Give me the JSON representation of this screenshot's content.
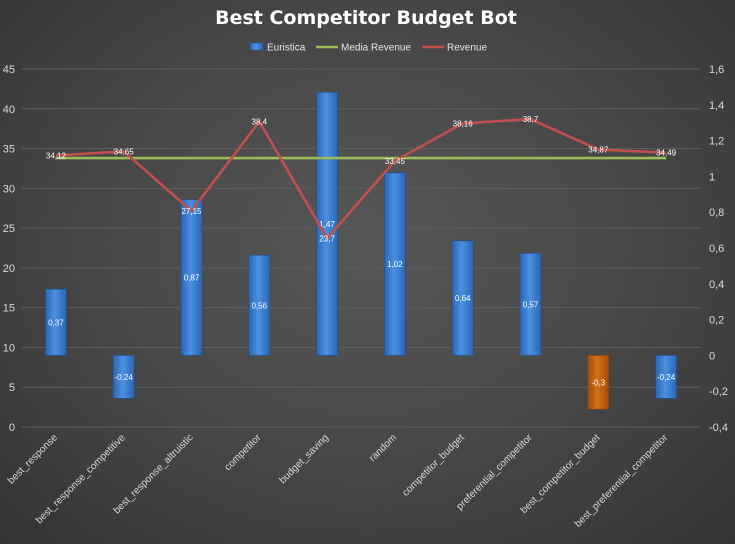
{
  "chart_data": {
    "type": "bar",
    "title": "Best Competitor Budget Bot",
    "legend": {
      "placement": "top",
      "entries": [
        "Euristica",
        "Media Revenue",
        "Revenue"
      ]
    },
    "categories": [
      "best_response",
      "best_response_competitive",
      "best_response_altruistic",
      "competitor",
      "budget_saving",
      "random",
      "competitor_budget",
      "preferential_competitor",
      "best_competitor_budget",
      "best_preferential_competitor"
    ],
    "y_left": {
      "min": 0,
      "max": 45,
      "ticks": [
        0,
        5,
        10,
        15,
        20,
        25,
        30,
        35,
        40,
        45
      ],
      "tick_labels": [
        "0",
        "5",
        "10",
        "15",
        "20",
        "25",
        "30",
        "35",
        "40",
        "45"
      ]
    },
    "y_right": {
      "min": -0.4,
      "max": 1.6,
      "ticks": [
        -0.4,
        -0.2,
        0,
        0.2,
        0.4,
        0.6,
        0.8,
        1,
        1.2,
        1.4,
        1.6
      ],
      "tick_labels": [
        "-0,4",
        "-0,2",
        "0",
        "0,2",
        "0,4",
        "0,6",
        "0,8",
        "1",
        "1,2",
        "1,4",
        "1,6"
      ]
    },
    "grid": true,
    "series": [
      {
        "name": "Euristica",
        "kind": "bar",
        "axis": "right",
        "values": [
          0.37,
          -0.24,
          0.87,
          0.56,
          1.47,
          1.02,
          0.64,
          0.57,
          -0.3,
          -0.24
        ],
        "labels": [
          "0,37",
          "-0,24",
          "0,87",
          "0,56",
          "1,47",
          "1,02",
          "0,64",
          "0,57",
          "-0,3",
          "-0,24"
        ],
        "colors": [
          "#3d84d6",
          "#3d84d6",
          "#3d84d6",
          "#3d84d6",
          "#3d84d6",
          "#3d84d6",
          "#3d84d6",
          "#3d84d6",
          "#c8600e",
          "#3d84d6"
        ]
      },
      {
        "name": "Media Revenue",
        "kind": "line",
        "axis": "left",
        "color": "#9bbb59",
        "values": [
          33.8,
          33.8,
          33.8,
          33.8,
          33.8,
          33.8,
          33.8,
          33.8,
          33.8,
          33.8
        ]
      },
      {
        "name": "Revenue",
        "kind": "line",
        "axis": "left",
        "color": "#c0504d",
        "values": [
          34.12,
          34.65,
          27.15,
          38.4,
          23.7,
          33.45,
          38.16,
          38.7,
          34.87,
          34.49
        ],
        "labels": [
          "34,12",
          "34,65",
          "27,15",
          "38,4",
          "23,7",
          "33,45",
          "38,16",
          "38,7",
          "34,87",
          "34,49"
        ]
      }
    ]
  }
}
